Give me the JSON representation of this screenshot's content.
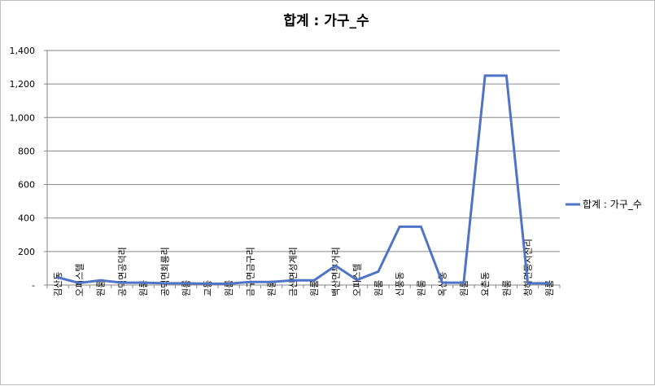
{
  "chart_data": {
    "type": "line",
    "title": "합계 : 가구_수",
    "xlabel": "",
    "ylabel": "",
    "ylim": [
      0,
      1400
    ],
    "yticks": [
      0,
      200,
      400,
      600,
      800,
      1000,
      1200,
      1400
    ],
    "ytick_labels": [
      "-",
      "200",
      "400",
      "600",
      "800",
      "1,000",
      "1,200",
      "1,400"
    ],
    "grid": true,
    "legend_position": "right",
    "categories": [
      "김산동",
      "오피스텔",
      "원룸",
      "공덕면공덕리",
      "원룸",
      "공덕면회룡리",
      "원룸",
      "교동",
      "원룸",
      "금구면금구리",
      "원룸",
      "금산면성계리",
      "원룸",
      "백산면부거리",
      "오피스텔",
      "원룸",
      "신풍동",
      "원룸",
      "옥산동",
      "원룸",
      "요촌동",
      "원룸",
      "청하면동지산리",
      "원룸"
    ],
    "series": [
      {
        "name": "합계 : 가구_수",
        "color": "#4f73c6",
        "values": [
          45,
          12,
          28,
          14,
          14,
          10,
          10,
          8,
          8,
          18,
          18,
          28,
          28,
          115,
          30,
          80,
          348,
          348,
          14,
          14,
          1250,
          1250,
          10,
          10
        ]
      }
    ]
  }
}
